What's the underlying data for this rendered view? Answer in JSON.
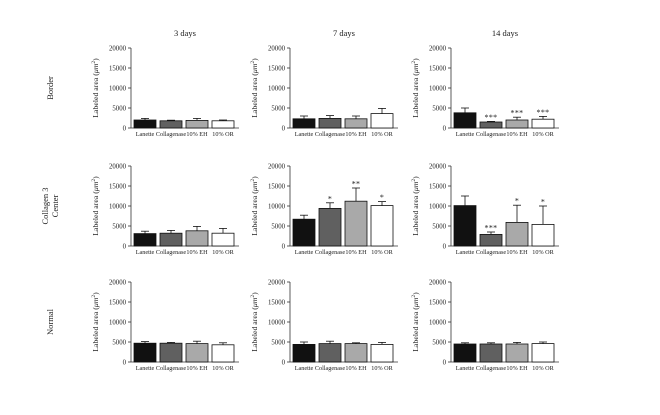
{
  "colors": {
    "Lanette": "#111111",
    "Collagenase": "#606060",
    "10% EH": "#a9a9a9",
    "10% OR": "#ffffff"
  },
  "column_titles": [
    "3 days",
    "7 days",
    "14 days"
  ],
  "row_labels": [
    [
      "Border"
    ],
    [
      "Collagen 3",
      "Center"
    ],
    [
      "Normal"
    ]
  ],
  "chart_data": [
    {
      "type": "bar",
      "row": 0,
      "col": 0,
      "title": "3 days",
      "row_label": "Border",
      "categories": [
        "Lanette",
        "Collagenase",
        "10% EH",
        "10% OR"
      ],
      "values": [
        2000,
        1800,
        1900,
        1800
      ],
      "errors": [
        400,
        150,
        500,
        200
      ],
      "annotations": [
        "",
        "",
        "",
        ""
      ],
      "ylabel_main": "Labeled area (",
      "ylabel_unit": "μm",
      "ylabel_sup": "2",
      "ylabel_end": ")",
      "ylim": [
        0,
        20000
      ],
      "yticks": [
        "0",
        "5000",
        "10000",
        "15000",
        "20000"
      ]
    },
    {
      "type": "bar",
      "row": 0,
      "col": 1,
      "title": "7 days",
      "row_label": "Border",
      "categories": [
        "Lanette",
        "Collagenase",
        "10% EH",
        "10% OR"
      ],
      "values": [
        2300,
        2400,
        2300,
        3600
      ],
      "errors": [
        700,
        700,
        700,
        1300
      ],
      "annotations": [
        "",
        "",
        "",
        ""
      ],
      "ylabel_main": "Labeled area (",
      "ylabel_unit": "μm",
      "ylabel_sup": "2",
      "ylabel_end": ")",
      "ylim": [
        0,
        20000
      ],
      "yticks": [
        "0",
        "5000",
        "10000",
        "15000",
        "20000"
      ]
    },
    {
      "type": "bar",
      "row": 0,
      "col": 2,
      "title": "14 days",
      "row_label": "Border",
      "categories": [
        "Lanette",
        "Collagenase",
        "10% EH",
        "10% OR"
      ],
      "values": [
        3800,
        1500,
        2000,
        2200
      ],
      "errors": [
        1200,
        150,
        700,
        700
      ],
      "annotations": [
        "",
        "***",
        "***",
        "***"
      ],
      "ylabel_main": "Labeled area (",
      "ylabel_unit": "μm",
      "ylabel_sup": "2",
      "ylabel_end": ")",
      "ylim": [
        0,
        20000
      ],
      "yticks": [
        "0",
        "5000",
        "10000",
        "15000",
        "20000"
      ]
    },
    {
      "type": "bar",
      "row": 1,
      "col": 0,
      "title": "3 days",
      "row_label": "Collagen 3 Center",
      "categories": [
        "Lanette",
        "Collagenase",
        "10% EH",
        "10% OR"
      ],
      "values": [
        3100,
        3200,
        3800,
        3200
      ],
      "errors": [
        600,
        700,
        1100,
        1200
      ],
      "annotations": [
        "",
        "",
        "",
        ""
      ],
      "ylabel_main": "Labeled area (",
      "ylabel_unit": "μm",
      "ylabel_sup": "2",
      "ylabel_end": ")",
      "ylim": [
        0,
        20000
      ],
      "yticks": [
        "0",
        "5000",
        "10000",
        "15000",
        "20000"
      ]
    },
    {
      "type": "bar",
      "row": 1,
      "col": 1,
      "title": "7 days",
      "row_label": "Collagen 3 Center",
      "categories": [
        "Lanette",
        "Collagenase",
        "10% EH",
        "10% OR"
      ],
      "values": [
        6700,
        9400,
        11200,
        10100
      ],
      "errors": [
        1000,
        1400,
        3300,
        1000
      ],
      "annotations": [
        "",
        "*",
        "**",
        "*"
      ],
      "ylabel_main": "Labeled area (",
      "ylabel_unit": "μm",
      "ylabel_sup": "2",
      "ylabel_end": ")",
      "ylim": [
        0,
        20000
      ],
      "yticks": [
        "0",
        "5000",
        "10000",
        "15000",
        "20000"
      ]
    },
    {
      "type": "bar",
      "row": 1,
      "col": 2,
      "title": "14 days",
      "row_label": "Collagen 3 Center",
      "categories": [
        "Lanette",
        "Collagenase",
        "10% EH",
        "10% OR"
      ],
      "values": [
        10100,
        2900,
        5900,
        5400
      ],
      "errors": [
        2400,
        600,
        4300,
        4600
      ],
      "annotations": [
        "",
        "***",
        "*",
        "*"
      ],
      "ylabel_main": "Labeled area (",
      "ylabel_unit": "μm",
      "ylabel_sup": "2",
      "ylabel_end": ")",
      "ylim": [
        0,
        20000
      ],
      "yticks": [
        "0",
        "5000",
        "10000",
        "15000",
        "20000"
      ]
    },
    {
      "type": "bar",
      "row": 2,
      "col": 0,
      "title": "3 days",
      "row_label": "Normal",
      "categories": [
        "Lanette",
        "Collagenase",
        "10% EH",
        "10% OR"
      ],
      "values": [
        4700,
        4700,
        4600,
        4300
      ],
      "errors": [
        400,
        200,
        600,
        500
      ],
      "annotations": [
        "",
        "",
        "",
        ""
      ],
      "ylabel_main": "Labeled area (",
      "ylabel_unit": "μm",
      "ylabel_sup": "2",
      "ylabel_end": ")",
      "ylim": [
        0,
        20000
      ],
      "yticks": [
        "0",
        "5000",
        "10000",
        "15000",
        "20000"
      ]
    },
    {
      "type": "bar",
      "row": 2,
      "col": 1,
      "title": "7 days",
      "row_label": "Normal",
      "categories": [
        "Lanette",
        "Collagenase",
        "10% EH",
        "10% OR"
      ],
      "values": [
        4400,
        4600,
        4600,
        4400
      ],
      "errors": [
        600,
        600,
        200,
        500
      ],
      "annotations": [
        "",
        "",
        "",
        ""
      ],
      "ylabel_main": "Labeled area (",
      "ylabel_unit": "μm",
      "ylabel_sup": "2",
      "ylabel_end": ")",
      "ylim": [
        0,
        20000
      ],
      "yticks": [
        "0",
        "5000",
        "10000",
        "15000",
        "20000"
      ]
    },
    {
      "type": "bar",
      "row": 2,
      "col": 2,
      "title": "14 days",
      "row_label": "Normal",
      "categories": [
        "Lanette",
        "Collagenase",
        "10% EH",
        "10% OR"
      ],
      "values": [
        4500,
        4500,
        4500,
        4600
      ],
      "errors": [
        300,
        300,
        400,
        400
      ],
      "annotations": [
        "",
        "",
        "",
        ""
      ],
      "ylabel_main": "Labeled area (",
      "ylabel_unit": "μm",
      "ylabel_sup": "2",
      "ylabel_end": ")",
      "ylim": [
        0,
        20000
      ],
      "yticks": [
        "0",
        "5000",
        "10000",
        "15000",
        "20000"
      ]
    }
  ]
}
